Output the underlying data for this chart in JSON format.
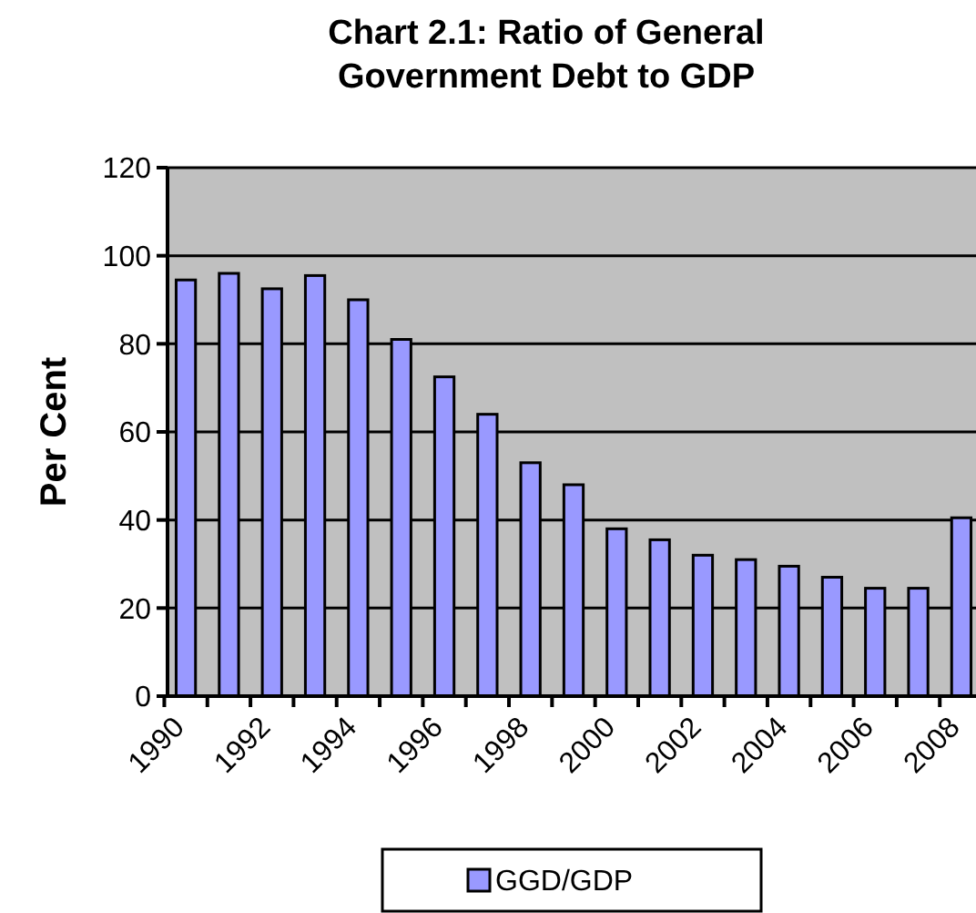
{
  "chart_data": {
    "type": "bar",
    "title": "Chart 2.1: Ratio of General\nGovernment Debt to GDP",
    "ylabel": "Per Cent",
    "categories": [
      "1990",
      null,
      "1992",
      null,
      "1994",
      null,
      "1996",
      null,
      "1998",
      null,
      "2000",
      null,
      "2002",
      null,
      "2004",
      null,
      "2006",
      null,
      "2008"
    ],
    "series": [
      {
        "name": "GGD/GDP",
        "color": "#9999ff",
        "values": [
          94.5,
          96,
          92.5,
          95.5,
          90,
          81,
          72.5,
          64,
          53,
          48,
          38,
          35.5,
          32,
          31,
          29.5,
          27,
          24.5,
          24.5,
          40.5
        ]
      }
    ],
    "ylim": [
      0,
      120
    ],
    "yticks": [
      0,
      20,
      40,
      60,
      80,
      100,
      120
    ],
    "grid": "y",
    "legend": "bottom"
  }
}
